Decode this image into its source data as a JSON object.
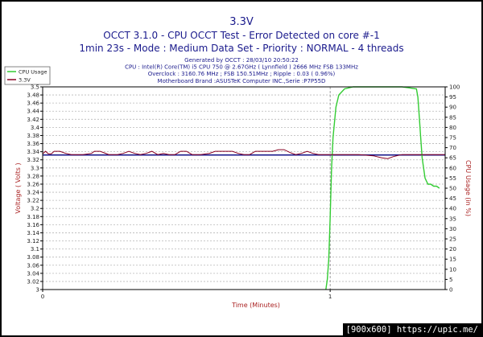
{
  "chart_data": {
    "type": "line",
    "title": "3.3V",
    "subtitle_lines": [
      "OCCT 3.1.0 - CPU OCCT Test - Error Detected on core #-1",
      "1min 23s - Mode : Medium Data Set - Priority : NORMAL - 4 threads"
    ],
    "info_lines": [
      "Generated by OCCT : 28/03/10 20:50:22",
      "CPU : Intel(R) Core(TM) i5 CPU 750 @ 2.67GHz ( Lynnfield ) 2666 MHz FSB 133MHz",
      "Overclock : 3160.76 MHz ; FSB 150.51MHz ; Ripple : 0.03 ( 0.96%)",
      "Motherboard Brand :ASUSTeK Computer INC.,Serie :P7P55D"
    ],
    "xlabel": "Time (Minutes)",
    "ylabel_left": "Voltage ( Volts )",
    "ylabel_right": "CPU Usage (in %)",
    "x_ticks": [
      "0",
      "1"
    ],
    "x_tick_values": [
      0,
      1
    ],
    "xlim": [
      0,
      1.4
    ],
    "ylim_left": [
      3.0,
      3.5
    ],
    "ylim_right": [
      0,
      100
    ],
    "y_ticks_left": [
      "3",
      "3.02",
      "3.04",
      "3.06",
      "3.08",
      "3.1",
      "3.12",
      "3.14",
      "3.16",
      "3.18",
      "3.2",
      "3.22",
      "3.24",
      "3.26",
      "3.28",
      "3.3",
      "3.32",
      "3.34",
      "3.36",
      "3.38",
      "3.4",
      "3.42",
      "3.44",
      "3.46",
      "3.48",
      "3.5"
    ],
    "y_ticks_right": [
      "0",
      "5",
      "10",
      "15",
      "20",
      "25",
      "30",
      "35",
      "40",
      "45",
      "50",
      "55",
      "60",
      "65",
      "70",
      "75",
      "80",
      "85",
      "90",
      "95",
      "100"
    ],
    "grid": true,
    "legend_position": "top-left",
    "series": [
      {
        "name": "CPU Usage",
        "axis": "right",
        "color": "#33cc33",
        "x": [
          0.985,
          0.99,
          0.995,
          1.0,
          1.005,
          1.01,
          1.02,
          1.03,
          1.05,
          1.08,
          1.15,
          1.25,
          1.3,
          1.305,
          1.31,
          1.315,
          1.32,
          1.33,
          1.34,
          1.35,
          1.36,
          1.37,
          1.38
        ],
        "values": [
          0,
          5,
          15,
          35,
          60,
          75,
          90,
          96,
          99,
          100,
          100,
          100,
          99,
          95,
          85,
          75,
          65,
          55,
          52,
          52,
          51,
          51,
          50
        ]
      },
      {
        "name": "3.3V",
        "axis": "left",
        "color": "#880022",
        "x": [
          0.0,
          0.01,
          0.02,
          0.03,
          0.04,
          0.06,
          0.08,
          0.1,
          0.14,
          0.17,
          0.18,
          0.2,
          0.23,
          0.26,
          0.28,
          0.3,
          0.32,
          0.34,
          0.36,
          0.38,
          0.4,
          0.42,
          0.44,
          0.46,
          0.48,
          0.5,
          0.52,
          0.55,
          0.58,
          0.6,
          0.62,
          0.64,
          0.66,
          0.68,
          0.7,
          0.72,
          0.74,
          0.76,
          0.78,
          0.8,
          0.82,
          0.84,
          0.86,
          0.88,
          0.9,
          0.92,
          0.94,
          0.96,
          0.98,
          1.0,
          1.05,
          1.1,
          1.15,
          1.18,
          1.2,
          1.22,
          1.25,
          1.3,
          1.35,
          1.4
        ],
        "values": [
          3.335,
          3.341,
          3.335,
          3.335,
          3.341,
          3.341,
          3.336,
          3.333,
          3.333,
          3.336,
          3.341,
          3.341,
          3.333,
          3.333,
          3.336,
          3.341,
          3.336,
          3.333,
          3.336,
          3.341,
          3.333,
          3.336,
          3.333,
          3.333,
          3.341,
          3.341,
          3.333,
          3.333,
          3.336,
          3.341,
          3.341,
          3.341,
          3.341,
          3.336,
          3.333,
          3.333,
          3.341,
          3.341,
          3.341,
          3.341,
          3.345,
          3.345,
          3.338,
          3.333,
          3.336,
          3.341,
          3.336,
          3.333,
          3.333,
          3.333,
          3.333,
          3.333,
          3.33,
          3.325,
          3.323,
          3.328,
          3.333,
          3.333,
          3.333,
          3.333
        ]
      }
    ],
    "reference_line": {
      "value": 3.332,
      "axis": "left",
      "color": "#1a1a8c"
    }
  },
  "colors": {
    "title": "#1a1a8c",
    "axis_label": "#aa2222",
    "grid": "#b8b8b8",
    "plot_background": "#ffffff",
    "tick_label": "#222222"
  },
  "watermark": "[900x600] https://upic.me/"
}
